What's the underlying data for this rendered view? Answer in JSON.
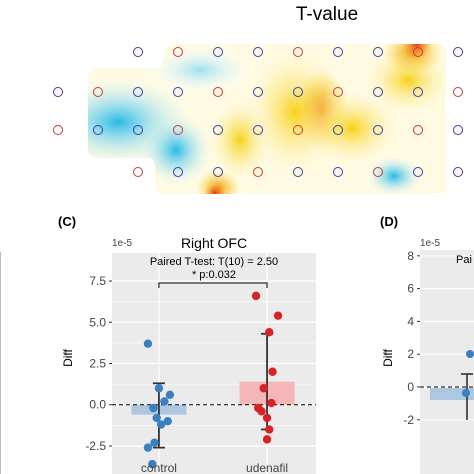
{
  "heatmap": {
    "title": "T-value"
  },
  "panel_c": {
    "letter": "(C)",
    "exponent": "1e-5",
    "annotation_line1": "Paired T-test: T(10) = 2.50",
    "annotation_line2": "* p:0.032"
  },
  "panel_d": {
    "letter": "(D)",
    "exponent": "1e-5",
    "ylabel": "Diff",
    "yticks": [
      "8",
      "6",
      "4",
      "2",
      "0",
      "-2"
    ],
    "annotation_fragment": "Pai"
  },
  "chart_data": [
    {
      "type": "scatter",
      "title": "Right OFC",
      "xlabel": "",
      "ylabel": "Diff",
      "y_exponent": "1e-5",
      "categories": [
        "control",
        "udenafil"
      ],
      "ylim": [
        -4.2,
        9.2
      ],
      "yticks": [
        -2.5,
        0.0,
        2.5,
        5.0,
        7.5
      ],
      "ytick_labels": [
        "-2.5",
        "0.0",
        "2.5",
        "5.0",
        "7.5"
      ],
      "grid": true,
      "reference_line": 0,
      "bars": [
        {
          "category": "control",
          "mean": -0.6,
          "color": "#aec7e0"
        },
        {
          "category": "udenafil",
          "mean": 1.4,
          "color": "#f4b6b6"
        }
      ],
      "error_bars": [
        {
          "category": "control",
          "low": -2.6,
          "high": 1.3
        },
        {
          "category": "udenafil",
          "low": -1.5,
          "high": 4.3
        }
      ],
      "series": [
        {
          "category": "control",
          "color": "#3a7fc1",
          "points": [
            [
              -0.1,
              3.7
            ],
            [
              0.0,
              1.0
            ],
            [
              0.1,
              0.6
            ],
            [
              0.05,
              0.2
            ],
            [
              -0.05,
              -0.2
            ],
            [
              -0.02,
              -0.8
            ],
            [
              0.08,
              -1.0
            ],
            [
              0.02,
              -1.2
            ],
            [
              -0.04,
              -2.3
            ],
            [
              -0.1,
              -2.6
            ],
            [
              -0.06,
              -3.6
            ]
          ]
        },
        {
          "category": "udenafil",
          "color": "#d92128",
          "points": [
            [
              -0.1,
              6.6
            ],
            [
              0.1,
              5.4
            ],
            [
              0.02,
              4.4
            ],
            [
              0.05,
              2.0
            ],
            [
              -0.03,
              1.0
            ],
            [
              0.04,
              0.1
            ],
            [
              -0.08,
              -0.2
            ],
            [
              -0.05,
              -0.4
            ],
            [
              0.0,
              -0.8
            ],
            [
              0.02,
              -1.5
            ],
            [
              0.0,
              -2.1
            ]
          ]
        }
      ],
      "significance": {
        "from": "control",
        "to": "udenafil"
      }
    }
  ]
}
